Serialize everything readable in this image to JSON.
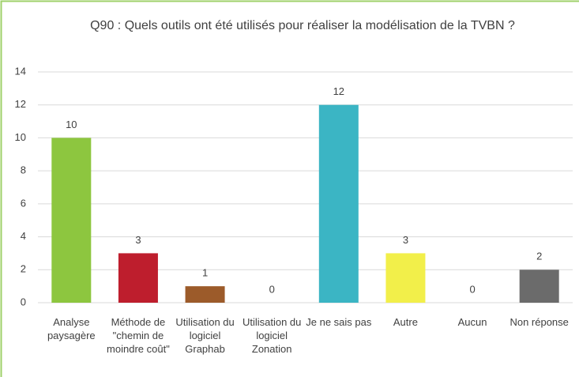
{
  "chart_data": {
    "type": "bar",
    "title": "Q90 : Quels outils ont été utilisés pour réaliser la modélisation de la TVBN ?",
    "categories": [
      "Analyse paysagère",
      "Méthode de \"chemin de moindre coût\"",
      "Utilisation du logiciel Graphab",
      "Utilisation du logiciel Zonation",
      "Je ne sais pas",
      "Autre",
      "Aucun",
      "Non réponse"
    ],
    "values": [
      10,
      3,
      1,
      0,
      12,
      3,
      0,
      2
    ],
    "colors": [
      "#8dc63f",
      "#be1e2d",
      "#9c5b2a",
      "#7f7f7f",
      "#3bb5c4",
      "#f2ef4a",
      "#7f7f7f",
      "#6b6b6b"
    ],
    "ylim": [
      0,
      14
    ],
    "yticks": [
      0,
      2,
      4,
      6,
      8,
      10,
      12,
      14
    ],
    "grid": true
  }
}
